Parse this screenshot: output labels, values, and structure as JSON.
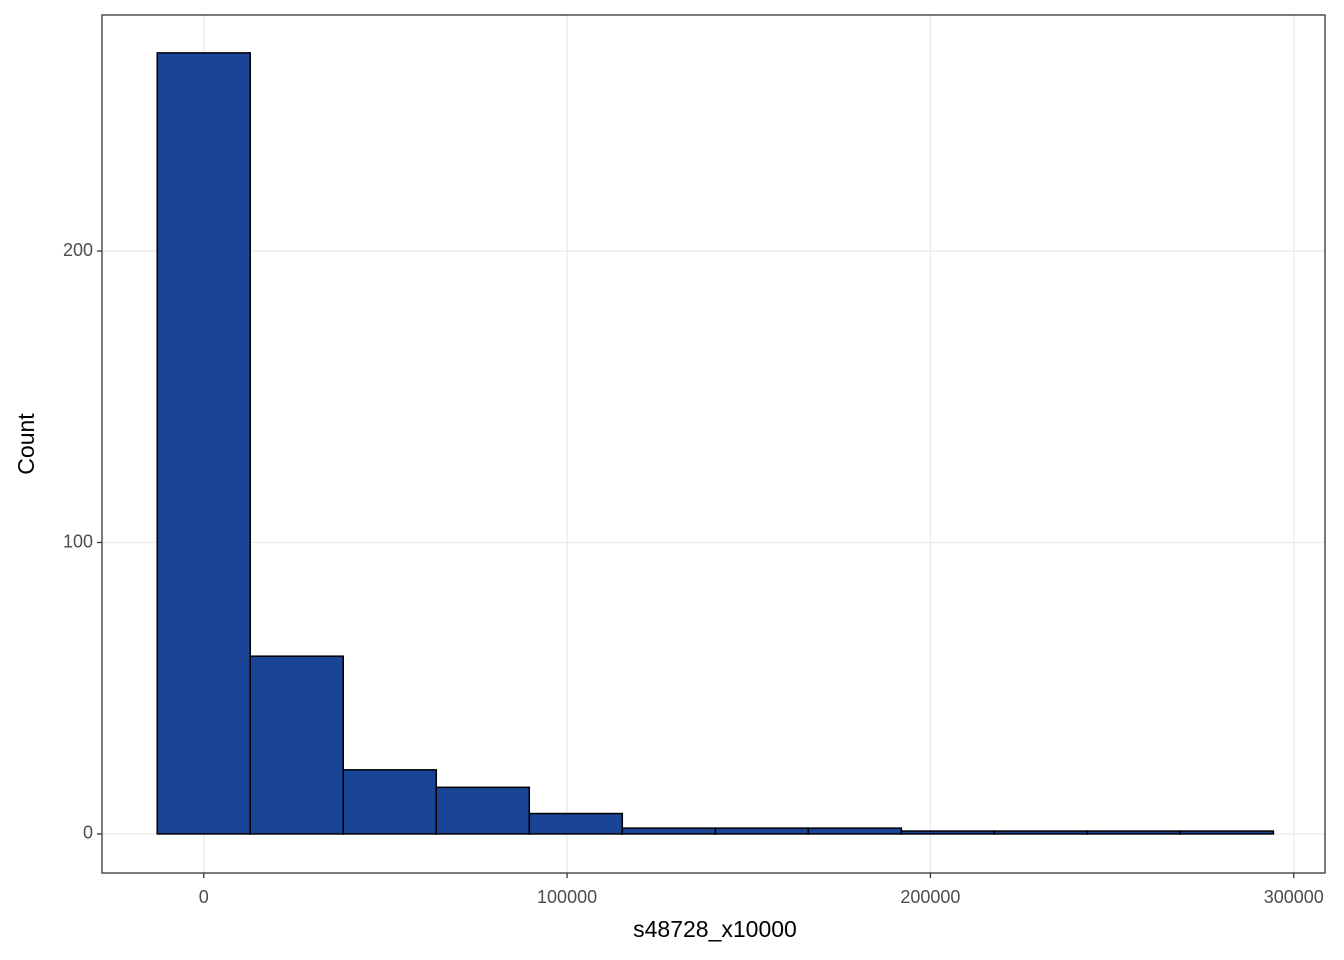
{
  "chart_data": {
    "type": "histogram",
    "x_label": "s48728_x10000",
    "y_label": "Count",
    "bins": [
      -12800,
      12800,
      38400,
      64000,
      89600,
      115200,
      140800,
      166400,
      192000,
      217600,
      243200,
      268800,
      294400
    ],
    "values": [
      268,
      61,
      22,
      16,
      7,
      2,
      2,
      2,
      1,
      1,
      1,
      1
    ],
    "color": "#1a4496",
    "edge_color": "#000000",
    "xlim": [
      -28000,
      308600
    ],
    "ylim": [
      -13.4,
      281
    ],
    "xticks": [
      0,
      100000,
      200000,
      300000
    ],
    "yticks": [
      0,
      100,
      200
    ],
    "grid": true
  }
}
